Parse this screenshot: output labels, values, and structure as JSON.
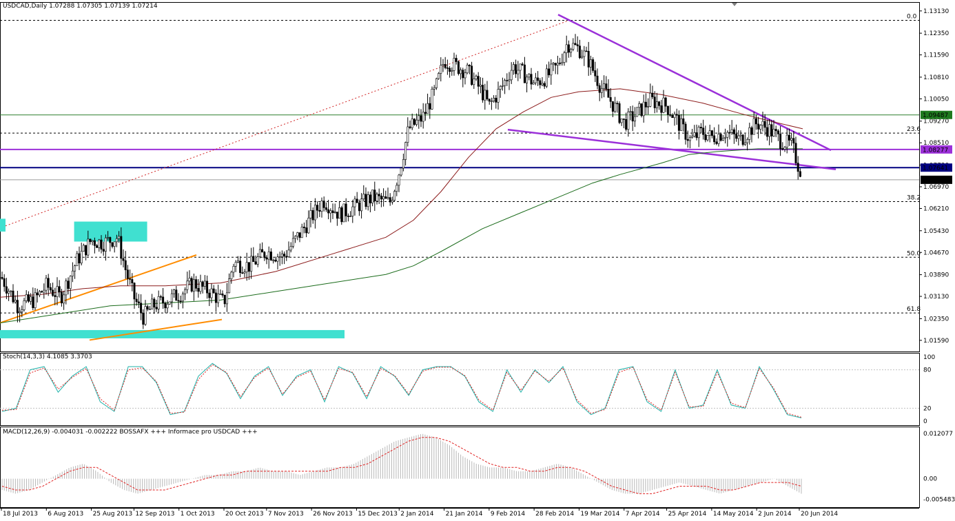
{
  "header": {
    "main_title": "USDCAD,Daily  1.07288 1.07305 1.07139 1.07214",
    "stoch_title": "Stoch(14,3,3) 4.1085 3.3703",
    "macd_title": "MACD(12,26,9) -0.004031 -0.002222   BOSSAFX +++ Informace pro USDCAD +++"
  },
  "price_axis": {
    "ticks": [
      "1.13130",
      "1.12350",
      "1.11590",
      "1.10810",
      "1.10050",
      "1.09270",
      "1.08510",
      "1.07730",
      "1.06970",
      "1.06210",
      "1.05430",
      "1.04670",
      "1.03890",
      "1.03130",
      "1.02350",
      "1.01590"
    ],
    "ylim": [
      1.012,
      1.1344
    ]
  },
  "price_tags": [
    {
      "value": 1.09487,
      "label": "1.09487",
      "color": "#1f7a1f"
    },
    {
      "value": 1.08277,
      "label": "1.08277",
      "color": "#9b30d9"
    },
    {
      "value": 1.07641,
      "label": "1.07641",
      "color": "#000080"
    },
    {
      "value": 1.07214,
      "label": "1.07214",
      "color": "#000000"
    }
  ],
  "fib_levels": [
    {
      "label": "0.0",
      "value": 1.128
    },
    {
      "label": "23.6",
      "value": 1.0885
    },
    {
      "label": "38.2",
      "value": 1.0645
    },
    {
      "label": "50.0",
      "value": 1.045
    },
    {
      "label": "61.8",
      "value": 1.0255
    }
  ],
  "stoch_axis": {
    "ticks": [
      "100",
      "80",
      "20",
      "0"
    ]
  },
  "macd_axis": {
    "ticks": [
      "0.012077",
      "0.00",
      "-0.005483"
    ]
  },
  "date_axis": {
    "ticks": [
      "18 Jul 2013",
      "6 Aug 2013",
      "25 Aug 2013",
      "12 Sep 2013",
      "1 Oct 2013",
      "20 Oct 2013",
      "7 Nov 2013",
      "26 Nov 2013",
      "15 Dec 2013",
      "2 Jan 2014",
      "21 Jan 2014",
      "9 Feb 2014",
      "28 Feb 2014",
      "19 Mar 2014",
      "7 Apr 2014",
      "25 Apr 2014",
      "14 May 2014",
      "2 Jun 2014",
      "20 Jun 2014"
    ]
  },
  "chart_data": [
    {
      "type": "candlestick",
      "title": "USDCAD,Daily",
      "ohlc_last": {
        "open": 1.07288,
        "high": 1.07305,
        "low": 1.07139,
        "close": 1.07214
      },
      "x_range": [
        "18 Jul 2013",
        "20 Jun 2014"
      ],
      "ylim": [
        1.012,
        1.1344
      ],
      "close_path": [
        [
          "18 Jul 2013",
          1.038
        ],
        [
          "25 Jul 2013",
          1.028
        ],
        [
          "1 Aug 2013",
          1.03
        ],
        [
          "6 Aug 2013",
          1.035
        ],
        [
          "12 Aug 2013",
          1.031
        ],
        [
          "19 Aug 2013",
          1.044
        ],
        [
          "25 Aug 2013",
          1.051
        ],
        [
          "30 Aug 2013",
          1.05
        ],
        [
          "5 Sep 2013",
          1.052
        ],
        [
          "9 Sep 2013",
          1.039
        ],
        [
          "12 Sep 2013",
          1.031
        ],
        [
          "16 Sep 2013",
          1.024
        ],
        [
          "20 Sep 2013",
          1.028
        ],
        [
          "26 Sep 2013",
          1.03
        ],
        [
          "1 Oct 2013",
          1.032
        ],
        [
          "7 Oct 2013",
          1.036
        ],
        [
          "14 Oct 2013",
          1.033
        ],
        [
          "20 Oct 2013",
          1.029
        ],
        [
          "24 Oct 2013",
          1.043
        ],
        [
          "31 Oct 2013",
          1.042
        ],
        [
          "7 Nov 2013",
          1.047
        ],
        [
          "14 Nov 2013",
          1.045
        ],
        [
          "20 Nov 2013",
          1.052
        ],
        [
          "26 Nov 2013",
          1.059
        ],
        [
          "1 Dec 2013",
          1.065
        ],
        [
          "8 Dec 2013",
          1.06
        ],
        [
          "15 Dec 2013",
          1.063
        ],
        [
          "22 Dec 2013",
          1.066
        ],
        [
          "29 Dec 2013",
          1.064
        ],
        [
          "2 Jan 2014",
          1.075
        ],
        [
          "6 Jan 2014",
          1.09
        ],
        [
          "12 Jan 2014",
          1.094
        ],
        [
          "17 Jan 2014",
          1.103
        ],
        [
          "21 Jan 2014",
          1.114
        ],
        [
          "26 Jan 2014",
          1.112
        ],
        [
          "31 Jan 2014",
          1.11
        ],
        [
          "6 Feb 2014",
          1.103
        ],
        [
          "9 Feb 2014",
          1.098
        ],
        [
          "14 Feb 2014",
          1.104
        ],
        [
          "19 Feb 2014",
          1.112
        ],
        [
          "24 Feb 2014",
          1.109
        ],
        [
          "28 Feb 2014",
          1.106
        ],
        [
          "5 Mar 2014",
          1.108
        ],
        [
          "10 Mar 2014",
          1.112
        ],
        [
          "14 Mar 2014",
          1.12
        ],
        [
          "19 Mar 2014",
          1.118
        ],
        [
          "23 Mar 2014",
          1.114
        ],
        [
          "28 Mar 2014",
          1.105
        ],
        [
          "2 Apr 2014",
          1.099
        ],
        [
          "7 Apr 2014",
          1.092
        ],
        [
          "12 Apr 2014",
          1.095
        ],
        [
          "18 Apr 2014",
          1.1
        ],
        [
          "25 Apr 2014",
          1.098
        ],
        [
          "30 Apr 2014",
          1.092
        ],
        [
          "5 May 2014",
          1.086
        ],
        [
          "10 May 2014",
          1.089
        ],
        [
          "14 May 2014",
          1.087
        ],
        [
          "20 May 2014",
          1.089
        ],
        [
          "26 May 2014",
          1.086
        ],
        [
          "2 Jun 2014",
          1.092
        ],
        [
          "7 Jun 2014",
          1.09
        ],
        [
          "12 Jun 2014",
          1.086
        ],
        [
          "17 Jun 2014",
          1.084
        ],
        [
          "20 Jun 2014",
          1.076
        ],
        [
          "24 Jun 2014",
          1.07214
        ]
      ]
    },
    {
      "type": "line",
      "title": "Stoch(14,3,3) 4.1085 3.3703",
      "ylim": [
        0,
        100
      ],
      "levels": [
        80,
        20
      ],
      "series": [
        {
          "values": [
            15,
            20,
            80,
            85,
            45,
            70,
            85,
            30,
            15,
            85,
            85,
            60,
            10,
            15,
            70,
            90,
            75,
            35,
            70,
            85,
            40,
            70,
            80,
            30,
            85,
            75,
            35,
            85,
            70,
            40,
            80,
            85,
            85,
            70,
            30,
            15,
            80,
            45,
            80,
            60,
            85,
            30,
            10,
            20,
            80,
            85,
            30,
            15,
            80,
            20,
            25,
            80,
            25,
            20,
            85,
            50,
            10,
            5
          ]
        },
        {
          "values": [
            17,
            18,
            75,
            83,
            50,
            68,
            82,
            35,
            17,
            80,
            83,
            62,
            12,
            14,
            65,
            88,
            76,
            38,
            68,
            83,
            42,
            68,
            78,
            33,
            82,
            76,
            38,
            82,
            71,
            42,
            78,
            84,
            84,
            71,
            33,
            17,
            76,
            48,
            78,
            62,
            83,
            33,
            12,
            18,
            76,
            84,
            33,
            17,
            76,
            22,
            23,
            76,
            28,
            21,
            82,
            52,
            12,
            6
          ]
        }
      ]
    },
    {
      "type": "bar",
      "title": "MACD(12,26,9) -0.004031 -0.002222",
      "ylim": [
        -0.0065,
        0.0128
      ],
      "histogram": [
        -0.003,
        -0.004,
        -0.003,
        -0.001,
        0.001,
        0.003,
        0.004,
        0.002,
        -0.001,
        -0.003,
        -0.004,
        -0.003,
        -0.002,
        -0.001,
        0.0,
        0.001,
        0.001,
        0.002,
        0.002,
        0.003,
        0.002,
        0.002,
        0.001,
        0.002,
        0.003,
        0.003,
        0.004,
        0.006,
        0.008,
        0.01,
        0.011,
        0.012,
        0.011,
        0.009,
        0.006,
        0.004,
        0.003,
        0.003,
        0.002,
        0.002,
        0.003,
        0.004,
        0.003,
        0.001,
        -0.001,
        -0.003,
        -0.004,
        -0.004,
        -0.003,
        -0.002,
        -0.001,
        -0.002,
        -0.003,
        -0.004,
        -0.003,
        -0.002,
        -0.001,
        0.0,
        -0.002,
        -0.004
      ],
      "signal": [
        -0.002,
        -0.003,
        -0.003,
        -0.002,
        0.0,
        0.002,
        0.003,
        0.003,
        0.001,
        -0.001,
        -0.003,
        -0.003,
        -0.003,
        -0.002,
        -0.001,
        0.0,
        0.001,
        0.001,
        0.002,
        0.002,
        0.002,
        0.002,
        0.002,
        0.002,
        0.002,
        0.003,
        0.003,
        0.004,
        0.006,
        0.008,
        0.01,
        0.011,
        0.011,
        0.01,
        0.008,
        0.006,
        0.004,
        0.003,
        0.003,
        0.002,
        0.002,
        0.003,
        0.003,
        0.002,
        0.0,
        -0.002,
        -0.003,
        -0.004,
        -0.004,
        -0.003,
        -0.002,
        -0.002,
        -0.002,
        -0.003,
        -0.003,
        -0.002,
        -0.001,
        -0.001,
        -0.001,
        -0.002
      ]
    }
  ]
}
